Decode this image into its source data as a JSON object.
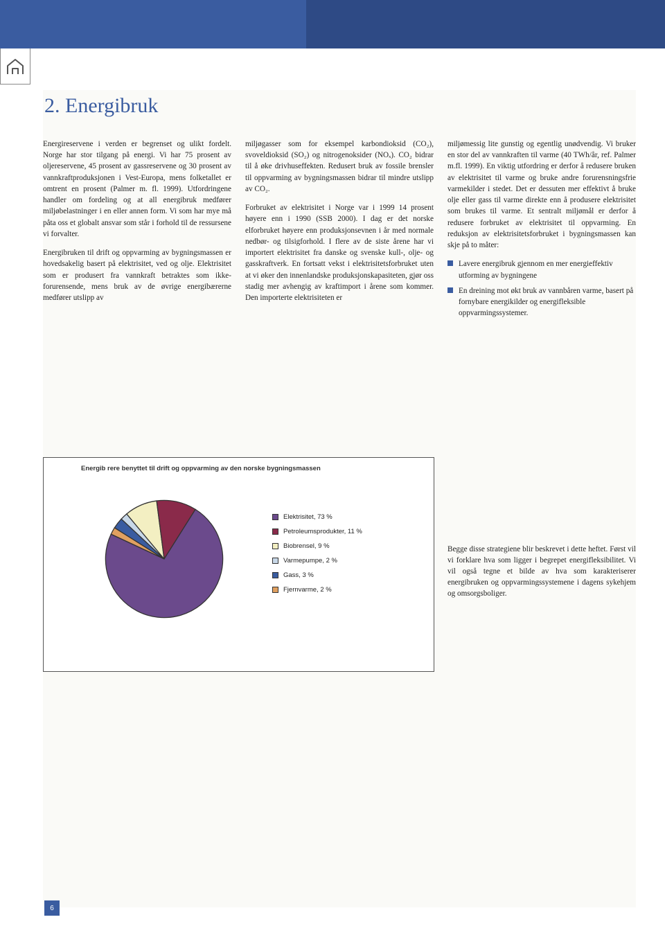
{
  "header": {
    "left_color": "#3a5ca0",
    "right_color": "#2e4a85"
  },
  "heading": "2. Energibruk",
  "page_number": "6",
  "columns": {
    "col1": {
      "p1": "Energireservene i verden er begrenset og ulikt fordelt. Norge har stor tilgang på energi. Vi har 75 prosent av oljereservene, 45 prosent av gassreservene og 30 prosent av vannkraftproduksjonen i Vest-Europa, mens folketallet er omtrent en prosent (Palmer m. fl. 1999). Utfordringene handler om fordeling og at all energibruk medfører miljøbelastninger i en eller annen form. Vi som har mye må påta oss et globalt ansvar som står i forhold til de ressursene vi forvalter.",
      "p2": "Energibruken til drift og oppvarming av bygningsmassen er hovedsakelig basert på elektrisitet, ved og olje. Elektrisitet som er produsert fra vannkraft betraktes som ikke-forurensende, mens bruk av de øvrige energibærerne medfører utslipp av"
    },
    "col2": {
      "p1": "miljøgasser som for eksempel karbondioksid (CO₂), svoveldioksid (SO₂) og nitrogenoksider (NOₓ). CO₂ bidrar til å øke drivhuseffekten. Redusert bruk av fossile brensler til oppvarming av bygningsmassen bidrar til mindre utslipp av CO₂.",
      "p2": "Forbruket av elektrisitet i Norge var i 1999 14 prosent høyere enn i 1990 (SSB 2000). I dag er det norske elforbruket høyere enn produksjonsevnen i år med normale nedbør- og tilsigforhold. I flere av de siste årene har vi importert elektrisitet fra danske og svenske kull-, olje- og gasskraftverk. En fortsatt vekst i elektrisitetsforbruket uten at vi øker den innenlandske produksjonskapasiteten, gjør oss stadig mer avhengig av kraftimport i årene som kommer. Den importerte elektrisiteten er"
    },
    "col3": {
      "p1": "miljømessig lite gunstig og egentlig unødvendig. Vi bruker en stor del av vannkraften til varme (40 TWh/år, ref. Palmer m.fl. 1999). En viktig utfordring er derfor å redusere bruken av elektrisitet til varme og bruke andre forurensningsfrie varmekilder i stedet. Det er dessuten mer effektivt å bruke olje eller gass til varme direkte enn å produsere elektrisitet som brukes til varme. Et sentralt miljømål er derfor å redusere forbruket av elektrisitet til oppvarming. En reduksjon av elektrisitetsforbruket i bygningsmassen kan skje på to måter:",
      "b1": "Lavere energibruk gjennom en mer energieffektiv utforming av bygningene",
      "b2": "En dreining mot økt bruk av vannbåren varme, basert på fornybare energikilder og energifleksible oppvarmingssystemer.",
      "p2": "Begge disse strategiene blir beskrevet i dette heftet. Først vil vi forklare hva som ligger i begrepet energifleksibilitet. Vi vil også tegne et bilde av hva som karakteriserer energibruken og oppvarmingssystemene i dagens sykehjem og omsorgsboliger."
    }
  },
  "chart": {
    "type": "pie",
    "title": "Energib rere benyttet til drift og oppvarming av den norske bygningsmassen",
    "background_color": "#ffffff",
    "border_color": "#555555",
    "slices": [
      {
        "label": "Elektrisitet, 73 %",
        "value": 73,
        "color": "#6b4a8c"
      },
      {
        "label": "Petroleumsprodukter, 11 %",
        "value": 11,
        "color": "#8a2a4a"
      },
      {
        "label": "Biobrensel, 9 %",
        "value": 9,
        "color": "#f3efc2"
      },
      {
        "label": "Varmepumpe, 2 %",
        "value": 2,
        "color": "#c8d8e8"
      },
      {
        "label": "Gass, 3 %",
        "value": 3,
        "color": "#3a5ca0"
      },
      {
        "label": "Fjernvarme, 2 %",
        "value": 2,
        "color": "#e0a060"
      }
    ],
    "title_fontsize": 9.5,
    "legend_fontsize": 9.5,
    "pie_stroke": "#333333",
    "pie_stroke_width": 0.7
  }
}
